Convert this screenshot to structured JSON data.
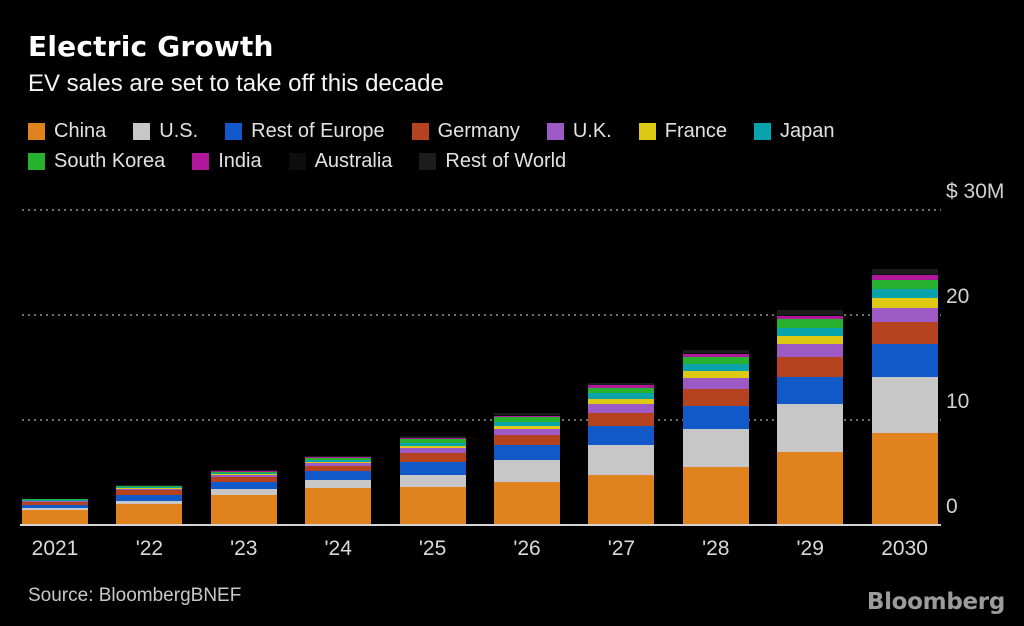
{
  "header": {
    "title": "Electric Growth",
    "subtitle": "EV sales are set to take off this decade"
  },
  "footer": {
    "source": "Source: BloombergBNEF",
    "logo": "Bloomberg"
  },
  "chart_data": {
    "type": "bar",
    "stacked": true,
    "title": "Electric Growth",
    "subtitle": "EV sales are set to take off this decade",
    "unit": "millions of vehicles",
    "grid": "dotted horizontal",
    "legend_position": "top",
    "y_axis_side": "right",
    "ylim": [
      0,
      30
    ],
    "categories": [
      "2021",
      "'22",
      "'23",
      "'24",
      "'25",
      "'26",
      "'27",
      "'28",
      "'29",
      "2030"
    ],
    "y_ticks": [
      {
        "label": "0",
        "value": 0
      },
      {
        "label": "10",
        "value": 10
      },
      {
        "label": "20",
        "value": 20
      },
      {
        "label": "$ 30M",
        "value": 30
      }
    ],
    "legend_rows": [
      [
        "China",
        "U.S.",
        "Rest of Europe",
        "Germany",
        "U.K.",
        "France",
        "Japan"
      ],
      [
        "South Korea",
        "India",
        "Australia",
        "Rest of World"
      ]
    ],
    "series": [
      {
        "name": "China",
        "color": "#e0831f",
        "values": [
          1.4,
          2.0,
          2.9,
          3.5,
          3.6,
          4.1,
          4.8,
          5.5,
          7.0,
          8.8
        ]
      },
      {
        "name": "U.S.",
        "color": "#c7c7c7",
        "values": [
          0.25,
          0.3,
          0.55,
          0.8,
          1.2,
          2.1,
          2.8,
          3.6,
          4.5,
          5.3
        ]
      },
      {
        "name": "Rest of Europe",
        "color": "#1159c8",
        "values": [
          0.3,
          0.6,
          0.65,
          0.8,
          1.2,
          1.4,
          1.8,
          2.2,
          2.6,
          3.1
        ]
      },
      {
        "name": "Germany",
        "color": "#b5431f",
        "values": [
          0.2,
          0.4,
          0.5,
          0.55,
          0.85,
          1.0,
          1.3,
          1.7,
          1.9,
          2.1
        ]
      },
      {
        "name": "U.K.",
        "color": "#9d59c4",
        "values": [
          0.1,
          0.12,
          0.16,
          0.22,
          0.45,
          0.5,
          0.8,
          1.0,
          1.2,
          1.4
        ]
      },
      {
        "name": "France",
        "color": "#ddc913",
        "values": [
          0.08,
          0.1,
          0.1,
          0.15,
          0.25,
          0.3,
          0.55,
          0.65,
          0.8,
          0.9
        ]
      },
      {
        "name": "Japan",
        "color": "#08a3ab",
        "values": [
          0.05,
          0.06,
          0.1,
          0.15,
          0.3,
          0.4,
          0.5,
          0.7,
          0.8,
          0.85
        ]
      },
      {
        "name": "South Korea",
        "color": "#26b12e",
        "values": [
          0.08,
          0.1,
          0.12,
          0.2,
          0.3,
          0.45,
          0.5,
          0.65,
          0.8,
          0.9
        ]
      },
      {
        "name": "India",
        "color": "#b0189c",
        "values": [
          0.03,
          0.05,
          0.08,
          0.12,
          0.15,
          0.18,
          0.25,
          0.3,
          0.35,
          0.45
        ]
      },
      {
        "name": "Australia",
        "color": "#0d0d0d",
        "values": [
          0.01,
          0.01,
          0.02,
          0.03,
          0.04,
          0.05,
          0.06,
          0.08,
          0.1,
          0.12
        ]
      },
      {
        "name": "Rest of World",
        "color": "#1c1c1c",
        "values": [
          0.02,
          0.03,
          0.05,
          0.08,
          0.1,
          0.15,
          0.2,
          0.3,
          0.4,
          0.5
        ]
      }
    ],
    "source": "Source: BloombergBNEF"
  }
}
